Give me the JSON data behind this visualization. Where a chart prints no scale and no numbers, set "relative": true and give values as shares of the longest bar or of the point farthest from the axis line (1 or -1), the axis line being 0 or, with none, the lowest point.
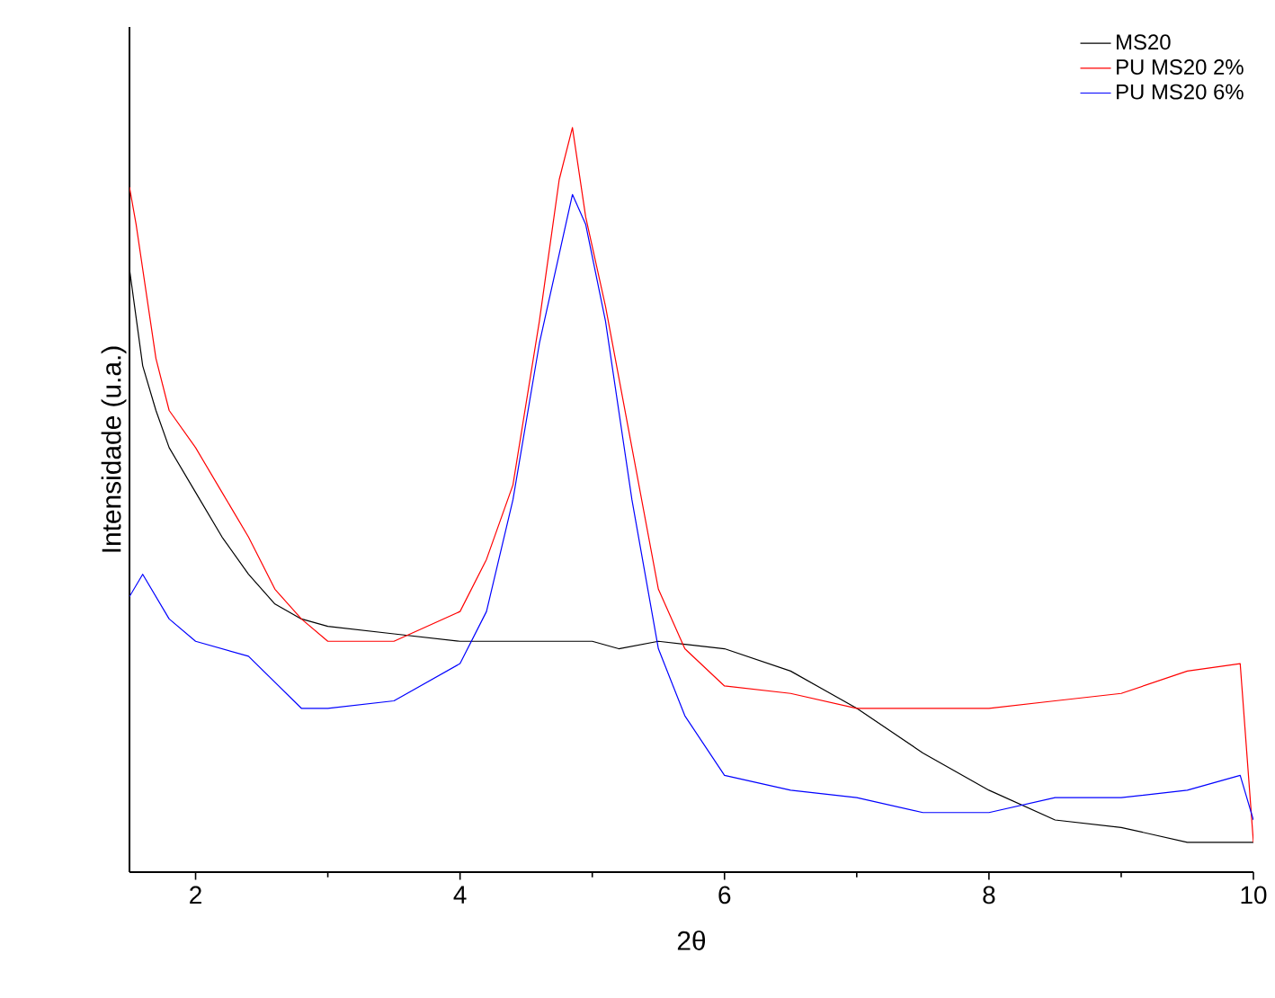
{
  "chart_data": {
    "type": "line",
    "relative": true,
    "xlabel": "2θ",
    "ylabel": "Intensidade (u.a.)",
    "xlim": [
      1.5,
      10
    ],
    "xticks": [
      2,
      4,
      6,
      8,
      10
    ],
    "tick_labels": "x",
    "legend": "top right",
    "grid": false,
    "marker": "none",
    "line_style": "solid",
    "series": [
      {
        "name": "MS20",
        "color": "#000000",
        "x": [
          1.5,
          1.6,
          1.7,
          1.8,
          2.0,
          2.2,
          2.4,
          2.6,
          2.8,
          3.0,
          3.5,
          4.0,
          4.5,
          5.0,
          5.2,
          5.5,
          6.0,
          6.5,
          7.0,
          7.5,
          8.0,
          8.5,
          9.0,
          9.5,
          10
        ],
        "values": [
          0.81,
          0.68,
          0.62,
          0.57,
          0.51,
          0.45,
          0.4,
          0.36,
          0.34,
          0.33,
          0.32,
          0.31,
          0.31,
          0.31,
          0.3,
          0.31,
          0.3,
          0.27,
          0.22,
          0.16,
          0.11,
          0.07,
          0.06,
          0.04,
          0.04
        ]
      },
      {
        "name": "PU MS20 2%",
        "color": "#ff0000",
        "x": [
          1.5,
          1.55,
          1.7,
          1.8,
          2.0,
          2.2,
          2.4,
          2.6,
          2.8,
          3.0,
          3.5,
          4.0,
          4.2,
          4.4,
          4.6,
          4.75,
          4.85,
          4.95,
          5.1,
          5.3,
          5.5,
          5.7,
          6.0,
          6.5,
          7.0,
          7.5,
          8.0,
          8.5,
          9.0,
          9.5,
          9.9,
          10
        ],
        "values": [
          0.92,
          0.87,
          0.69,
          0.62,
          0.57,
          0.51,
          0.45,
          0.38,
          0.34,
          0.31,
          0.31,
          0.35,
          0.42,
          0.52,
          0.74,
          0.93,
          1,
          0.88,
          0.76,
          0.57,
          0.38,
          0.3,
          0.25,
          0.24,
          0.22,
          0.22,
          0.22,
          0.23,
          0.24,
          0.27,
          0.28,
          0.04
        ]
      },
      {
        "name": "PU MS20 6%",
        "color": "#0000ff",
        "x": [
          1.5,
          1.6,
          1.8,
          2.0,
          2.4,
          2.8,
          3.0,
          3.5,
          4.0,
          4.2,
          4.4,
          4.6,
          4.75,
          4.85,
          4.95,
          5.1,
          5.3,
          5.5,
          5.7,
          6.0,
          6.5,
          7.0,
          7.5,
          8.0,
          8.5,
          9.0,
          9.5,
          9.9,
          10
        ],
        "values": [
          0.37,
          0.4,
          0.34,
          0.31,
          0.29,
          0.22,
          0.22,
          0.23,
          0.28,
          0.35,
          0.5,
          0.71,
          0.83,
          0.91,
          0.87,
          0.74,
          0.5,
          0.3,
          0.21,
          0.13,
          0.11,
          0.1,
          0.08,
          0.08,
          0.1,
          0.1,
          0.11,
          0.13,
          0.07
        ]
      }
    ]
  }
}
